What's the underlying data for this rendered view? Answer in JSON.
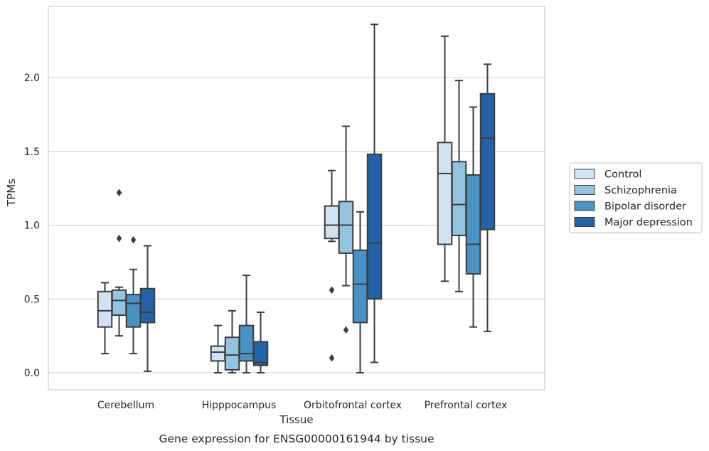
{
  "caption": "Gene expression for ENSG00000161944 by tissue",
  "colors": {
    "box_stroke": "#3d3d3d",
    "grid": "#cccccc",
    "axes_frame": "#cccccc",
    "series": [
      "#d1e2f1",
      "#93c3df",
      "#4a91c4",
      "#2362a9"
    ]
  },
  "chart_data": {
    "type": "box",
    "xlabel": "Tissue",
    "ylabel": "TPMs",
    "ylim": [
      -0.11,
      2.5
    ],
    "yticks": [
      "0.0",
      "0.5",
      "1.0",
      "1.5",
      "2.0"
    ],
    "grid": "horizontal",
    "legend_position": "right",
    "categories": [
      "Cerebellum",
      "Hipppocampus",
      "Orbitofrontal cortex",
      "Prefrontal cortex"
    ],
    "series": [
      {
        "name": "Control",
        "boxes": [
          {
            "whisker_low": 0.13,
            "q1": 0.31,
            "median": 0.42,
            "q3": 0.55,
            "whisker_high": 0.61,
            "outliers": []
          },
          {
            "whisker_low": 0.0,
            "q1": 0.08,
            "median": 0.14,
            "q3": 0.18,
            "whisker_high": 0.32,
            "outliers": []
          },
          {
            "whisker_low": 0.89,
            "q1": 0.91,
            "median": 1.0,
            "q3": 1.13,
            "whisker_high": 1.37,
            "outliers": [
              0.56,
              0.1
            ]
          },
          {
            "whisker_low": 0.62,
            "q1": 0.87,
            "median": 1.35,
            "q3": 1.56,
            "whisker_high": 2.28,
            "outliers": []
          }
        ]
      },
      {
        "name": "Schizophrenia",
        "boxes": [
          {
            "whisker_low": 0.25,
            "q1": 0.39,
            "median": 0.49,
            "q3": 0.56,
            "whisker_high": 0.58,
            "outliers": [
              1.22,
              0.91
            ]
          },
          {
            "whisker_low": 0.0,
            "q1": 0.02,
            "median": 0.12,
            "q3": 0.24,
            "whisker_high": 0.42,
            "outliers": []
          },
          {
            "whisker_low": 0.59,
            "q1": 0.81,
            "median": 1.0,
            "q3": 1.16,
            "whisker_high": 1.67,
            "outliers": [
              0.29
            ]
          },
          {
            "whisker_low": 0.55,
            "q1": 0.93,
            "median": 1.14,
            "q3": 1.43,
            "whisker_high": 1.98,
            "outliers": []
          }
        ]
      },
      {
        "name": "Bipolar disorder",
        "boxes": [
          {
            "whisker_low": 0.13,
            "q1": 0.31,
            "median": 0.47,
            "q3": 0.53,
            "whisker_high": 0.7,
            "outliers": [
              0.9
            ]
          },
          {
            "whisker_low": 0.0,
            "q1": 0.08,
            "median": 0.13,
            "q3": 0.32,
            "whisker_high": 0.66,
            "outliers": []
          },
          {
            "whisker_low": 0.0,
            "q1": 0.34,
            "median": 0.6,
            "q3": 0.83,
            "whisker_high": 1.09,
            "outliers": []
          },
          {
            "whisker_low": 0.31,
            "q1": 0.67,
            "median": 0.87,
            "q3": 1.34,
            "whisker_high": 1.8,
            "outliers": []
          }
        ]
      },
      {
        "name": "Major depression",
        "boxes": [
          {
            "whisker_low": 0.01,
            "q1": 0.34,
            "median": 0.41,
            "q3": 0.57,
            "whisker_high": 0.86,
            "outliers": []
          },
          {
            "whisker_low": 0.0,
            "q1": 0.05,
            "median": 0.07,
            "q3": 0.21,
            "whisker_high": 0.41,
            "outliers": []
          },
          {
            "whisker_low": 0.07,
            "q1": 0.5,
            "median": 0.88,
            "q3": 1.48,
            "whisker_high": 2.36,
            "outliers": []
          },
          {
            "whisker_low": 0.28,
            "q1": 0.97,
            "median": 1.59,
            "q3": 1.89,
            "whisker_high": 2.09,
            "outliers": []
          }
        ]
      }
    ]
  }
}
